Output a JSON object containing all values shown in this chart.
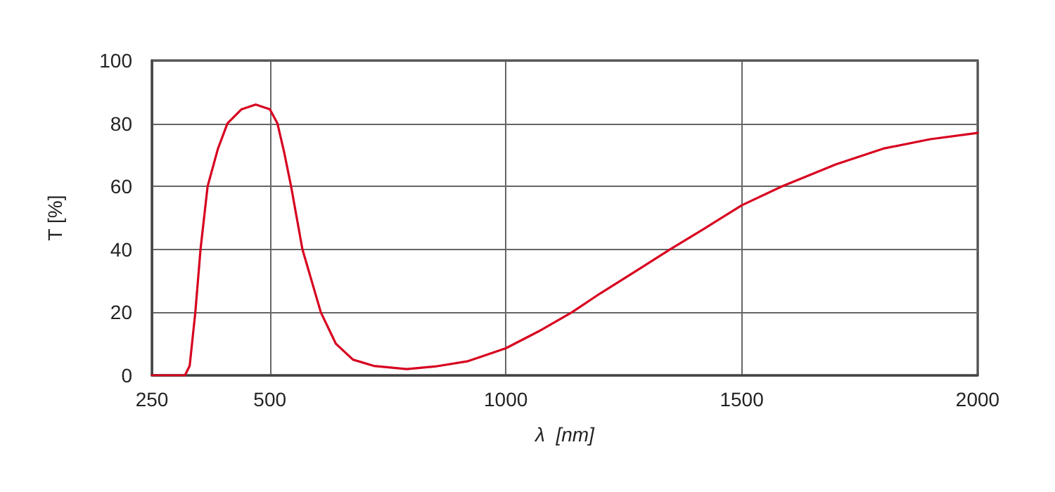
{
  "chart_data": {
    "type": "line",
    "xlabel": "λ  [nm]",
    "ylabel": "T [%]",
    "x": [
      250,
      320,
      330,
      342,
      353,
      368,
      390,
      410,
      440,
      470,
      500,
      516,
      530,
      545,
      569,
      608,
      640,
      676,
      720,
      790,
      850,
      920,
      1000,
      1070,
      1140,
      1200,
      1280,
      1348,
      1420,
      1500,
      1585,
      1700,
      1800,
      1900,
      2000
    ],
    "series": [
      {
        "color": "#d7001f",
        "values": [
          0,
          0,
          3,
          20,
          40,
          60,
          72,
          80,
          84.5,
          86,
          84.5,
          80,
          71,
          60,
          40,
          20,
          10,
          5,
          3,
          2,
          2.8,
          4.5,
          8.6,
          14,
          20,
          26,
          33.5,
          40,
          46.5,
          54,
          60,
          67,
          72,
          75,
          77
        ]
      }
    ],
    "xlim": [
      250,
      2000
    ],
    "xticks": [
      250,
      500,
      1000,
      1500,
      2000
    ],
    "ylim": [
      0,
      100
    ],
    "yticks": [
      0,
      20,
      40,
      60,
      80,
      100
    ],
    "grid": true,
    "legend": false,
    "marker": "none",
    "line_style": "solid"
  }
}
